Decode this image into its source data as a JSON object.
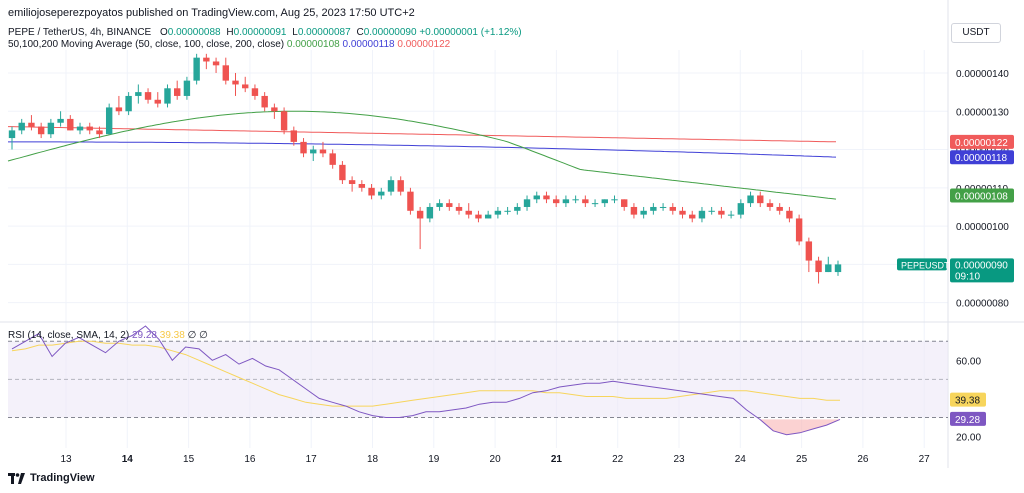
{
  "header": {
    "publisher": "emiliojoseperezpoyatos published on TradingView.com, Aug 25, 2023 17:50 UTC+2",
    "symbol": "PEPE / TetherUS, 4h, BINANCE",
    "ohlc": {
      "o_label": "O",
      "o": "0.00000088",
      "h_label": "H",
      "h": "0.00000091",
      "l_label": "L",
      "l": "0.00000087",
      "c_label": "C",
      "c": "0.00000090",
      "change": "+0.00000001 (+1.12%)"
    },
    "ma_label": "50,100,200 Moving Average (50, close, 100, close, 200, close)",
    "ma_values": [
      "0.00000108",
      "0.00000118",
      "0.00000122"
    ],
    "currency": "USDT"
  },
  "rsi_legend": {
    "label": "RSI (14, close, SMA, 14, 2)",
    "rsi": "29.28",
    "sma": "39.38",
    "extra1": "∅",
    "extra2": "∅"
  },
  "footer": {
    "brand": "TradingView"
  },
  "colors": {
    "up": "#26a69a",
    "down": "#ef5350",
    "ma50": "#43a047",
    "ma100": "#3f3fd6",
    "ma200": "#f05b5b",
    "rsi": "#7e57c2",
    "rsi_sma": "#f7d55c",
    "band": "#ede7f6"
  },
  "chart_data": [
    {
      "type": "candlestick",
      "title": "PEPE / TetherUS, 4h, BINANCE",
      "x_tick_labels": [
        "13",
        "14",
        "15",
        "16",
        "17",
        "18",
        "19",
        "20",
        "21",
        "22",
        "23",
        "24",
        "25",
        "26",
        "27"
      ],
      "y_tick_labels": [
        "0.00000080",
        "0.00000090",
        "0.00000100",
        "0.00000110",
        "0.00000120",
        "0.00000130",
        "0.00000140"
      ],
      "ylim": [
        7.6e-07,
        1.46e-06
      ],
      "price_label": {
        "name": "PEPEUSDT",
        "value": "0.00000090",
        "countdown": "09:10"
      },
      "ma_tags": [
        "0.00000108",
        "0.00000118",
        "0.00000122"
      ],
      "candles_units": "×1e-8",
      "candles": [
        [
          123,
          126,
          120,
          125
        ],
        [
          125,
          128,
          124,
          127
        ],
        [
          127,
          129,
          125,
          126
        ],
        [
          126,
          127,
          123,
          124
        ],
        [
          124,
          128,
          123,
          127
        ],
        [
          127,
          130,
          126,
          128
        ],
        [
          128,
          129,
          125,
          125
        ],
        [
          125,
          127,
          124,
          126
        ],
        [
          126,
          127,
          124,
          125
        ],
        [
          125,
          126,
          123,
          124
        ],
        [
          124,
          132,
          124,
          131
        ],
        [
          131,
          134,
          129,
          130
        ],
        [
          130,
          135,
          129,
          134
        ],
        [
          134,
          137,
          132,
          135
        ],
        [
          135,
          136,
          132,
          133
        ],
        [
          133,
          135,
          131,
          132
        ],
        [
          132,
          137,
          131,
          136
        ],
        [
          136,
          138,
          133,
          134
        ],
        [
          134,
          139,
          133,
          138
        ],
        [
          138,
          145,
          137,
          144
        ],
        [
          144,
          145,
          141,
          143
        ],
        [
          143,
          144,
          140,
          142
        ],
        [
          142,
          144,
          137,
          138
        ],
        [
          138,
          140,
          134,
          137
        ],
        [
          137,
          139,
          135,
          136
        ],
        [
          136,
          137,
          133,
          134
        ],
        [
          134,
          135,
          130,
          131
        ],
        [
          131,
          132,
          128,
          130
        ],
        [
          130,
          131,
          124,
          125
        ],
        [
          125,
          126,
          121,
          122
        ],
        [
          122,
          123,
          118,
          119
        ],
        [
          119,
          121,
          117,
          120
        ],
        [
          120,
          122,
          118,
          119
        ],
        [
          119,
          120,
          115,
          116
        ],
        [
          116,
          117,
          111,
          112
        ],
        [
          112,
          113,
          109,
          111
        ],
        [
          111,
          112,
          109,
          110
        ],
        [
          110,
          111,
          107,
          108
        ],
        [
          108,
          110,
          107,
          109
        ],
        [
          109,
          113,
          108,
          112
        ],
        [
          112,
          113,
          108,
          109
        ],
        [
          109,
          110,
          103,
          104
        ],
        [
          104,
          105,
          94,
          102
        ],
        [
          102,
          106,
          101,
          105
        ],
        [
          105,
          107,
          104,
          106
        ],
        [
          106,
          107,
          104,
          105
        ],
        [
          105,
          106,
          103,
          104
        ],
        [
          104,
          106,
          102,
          103
        ],
        [
          103,
          104,
          101,
          102
        ],
        [
          102,
          104,
          102,
          103
        ],
        [
          103,
          105,
          102,
          104
        ],
        [
          104,
          105,
          103,
          104
        ],
        [
          104,
          106,
          103,
          105
        ],
        [
          105,
          108,
          104,
          107
        ],
        [
          107,
          109,
          106,
          108
        ],
        [
          108,
          109,
          106,
          107
        ],
        [
          107,
          108,
          105,
          106
        ],
        [
          106,
          108,
          105,
          107
        ],
        [
          107,
          108,
          106,
          107
        ],
        [
          107,
          108,
          105,
          106
        ],
        [
          106,
          107,
          105,
          106
        ],
        [
          106,
          107,
          105,
          107
        ],
        [
          107,
          108,
          106,
          107
        ],
        [
          107,
          107,
          104,
          105
        ],
        [
          105,
          106,
          102,
          103
        ],
        [
          103,
          105,
          102,
          104
        ],
        [
          104,
          106,
          103,
          105
        ],
        [
          105,
          106,
          104,
          105
        ],
        [
          105,
          106,
          103,
          104
        ],
        [
          104,
          105,
          102,
          103
        ],
        [
          103,
          104,
          101,
          102
        ],
        [
          102,
          105,
          101,
          104
        ],
        [
          104,
          105,
          103,
          104
        ],
        [
          104,
          105,
          102,
          103
        ],
        [
          103,
          104,
          102,
          103
        ],
        [
          103,
          107,
          102,
          106
        ],
        [
          106,
          109,
          105,
          108
        ],
        [
          108,
          109,
          105,
          106
        ],
        [
          106,
          107,
          104,
          105
        ],
        [
          105,
          106,
          103,
          104
        ],
        [
          104,
          105,
          101,
          102
        ],
        [
          102,
          103,
          95,
          96
        ],
        [
          96,
          97,
          88,
          91
        ],
        [
          91,
          92,
          85,
          88
        ],
        [
          88,
          92,
          88,
          90
        ],
        [
          88,
          91,
          87,
          90
        ]
      ]
    },
    {
      "type": "line",
      "title": "RSI (14, close, SMA, 14, 2)",
      "y_tick_labels": [
        "60.00",
        "20.00"
      ],
      "levels": [
        70,
        50,
        30
      ],
      "ylim": [
        14,
        78
      ],
      "series": [
        {
          "name": "RSI",
          "values": [
            66,
            70,
            74,
            62,
            69,
            72,
            68,
            64,
            70,
            73,
            78,
            71,
            60,
            67,
            66,
            60,
            63,
            58,
            61,
            57,
            55,
            50,
            45,
            40,
            38,
            36,
            33,
            31,
            30,
            30,
            31,
            33,
            33,
            34,
            35,
            37,
            38,
            38,
            40,
            43,
            44,
            46,
            47,
            48,
            48,
            49,
            48,
            47,
            46,
            45,
            44,
            43,
            42,
            41,
            40,
            34,
            29,
            23,
            21,
            22,
            24,
            26,
            29
          ],
          "tag": "29.28"
        },
        {
          "name": "RSI-based MA",
          "values": [
            65,
            66,
            68,
            68,
            69,
            70,
            70,
            69,
            69,
            68,
            68,
            67,
            65,
            63,
            60,
            57,
            54,
            51,
            48,
            45,
            42,
            40,
            38,
            37,
            36,
            36,
            36,
            36,
            37,
            38,
            39,
            40,
            41,
            42,
            43,
            44,
            44,
            44,
            44,
            44,
            43,
            43,
            42,
            41,
            41,
            41,
            40,
            40,
            40,
            40,
            41,
            42,
            43,
            44,
            44,
            44,
            43,
            42,
            41,
            40,
            40,
            39,
            39
          ],
          "tag": "39.38"
        }
      ]
    }
  ]
}
